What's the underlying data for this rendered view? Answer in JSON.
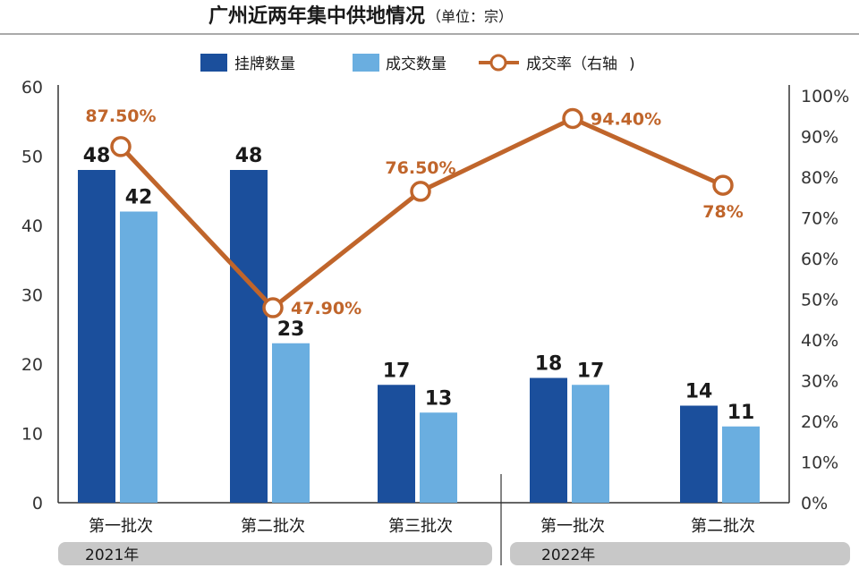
{
  "chart_data": {
    "type": "bar",
    "title": "广州近两年集中供地情况",
    "subtitle": "（单位：宗）",
    "categories": [
      "第一批次",
      "第二批次",
      "第三批次",
      "第一批次",
      "第二批次"
    ],
    "groups": [
      {
        "label": "2021年",
        "categories": [
          0,
          1,
          2
        ]
      },
      {
        "label": "2022年",
        "categories": [
          3,
          4
        ]
      }
    ],
    "series": [
      {
        "name": "挂牌数量",
        "type": "bar",
        "axis": "left",
        "color": "#1b4f9c",
        "values": [
          48,
          48,
          17,
          18,
          14
        ],
        "labels": [
          "48",
          "48",
          "17",
          "18",
          "14"
        ]
      },
      {
        "name": "成交数量",
        "type": "bar",
        "axis": "left",
        "color": "#6aaee0",
        "values": [
          42,
          23,
          13,
          17,
          11
        ],
        "labels": [
          "42",
          "23",
          "13",
          "17",
          "11"
        ]
      },
      {
        "name": "成交率（右轴",
        "type": "line",
        "axis": "right",
        "color": "#c0652b",
        "values": [
          87.5,
          47.9,
          76.5,
          94.4,
          78
        ],
        "labels": [
          "87.50%",
          "47.90%",
          "76.50%",
          "94.40%",
          "78%"
        ]
      }
    ],
    "y_left": {
      "range": [
        0,
        60
      ],
      "ticks": [
        "0",
        "10",
        "20",
        "30",
        "40",
        "50",
        "60"
      ]
    },
    "y_right": {
      "range": [
        0,
        100
      ],
      "ticks": [
        "0%",
        "10%",
        "20%",
        "30%",
        "40%",
        "50%",
        "60%",
        "70%",
        "80%",
        "90%",
        "100%"
      ]
    },
    "legend_position": "top-center",
    "grid": false
  }
}
